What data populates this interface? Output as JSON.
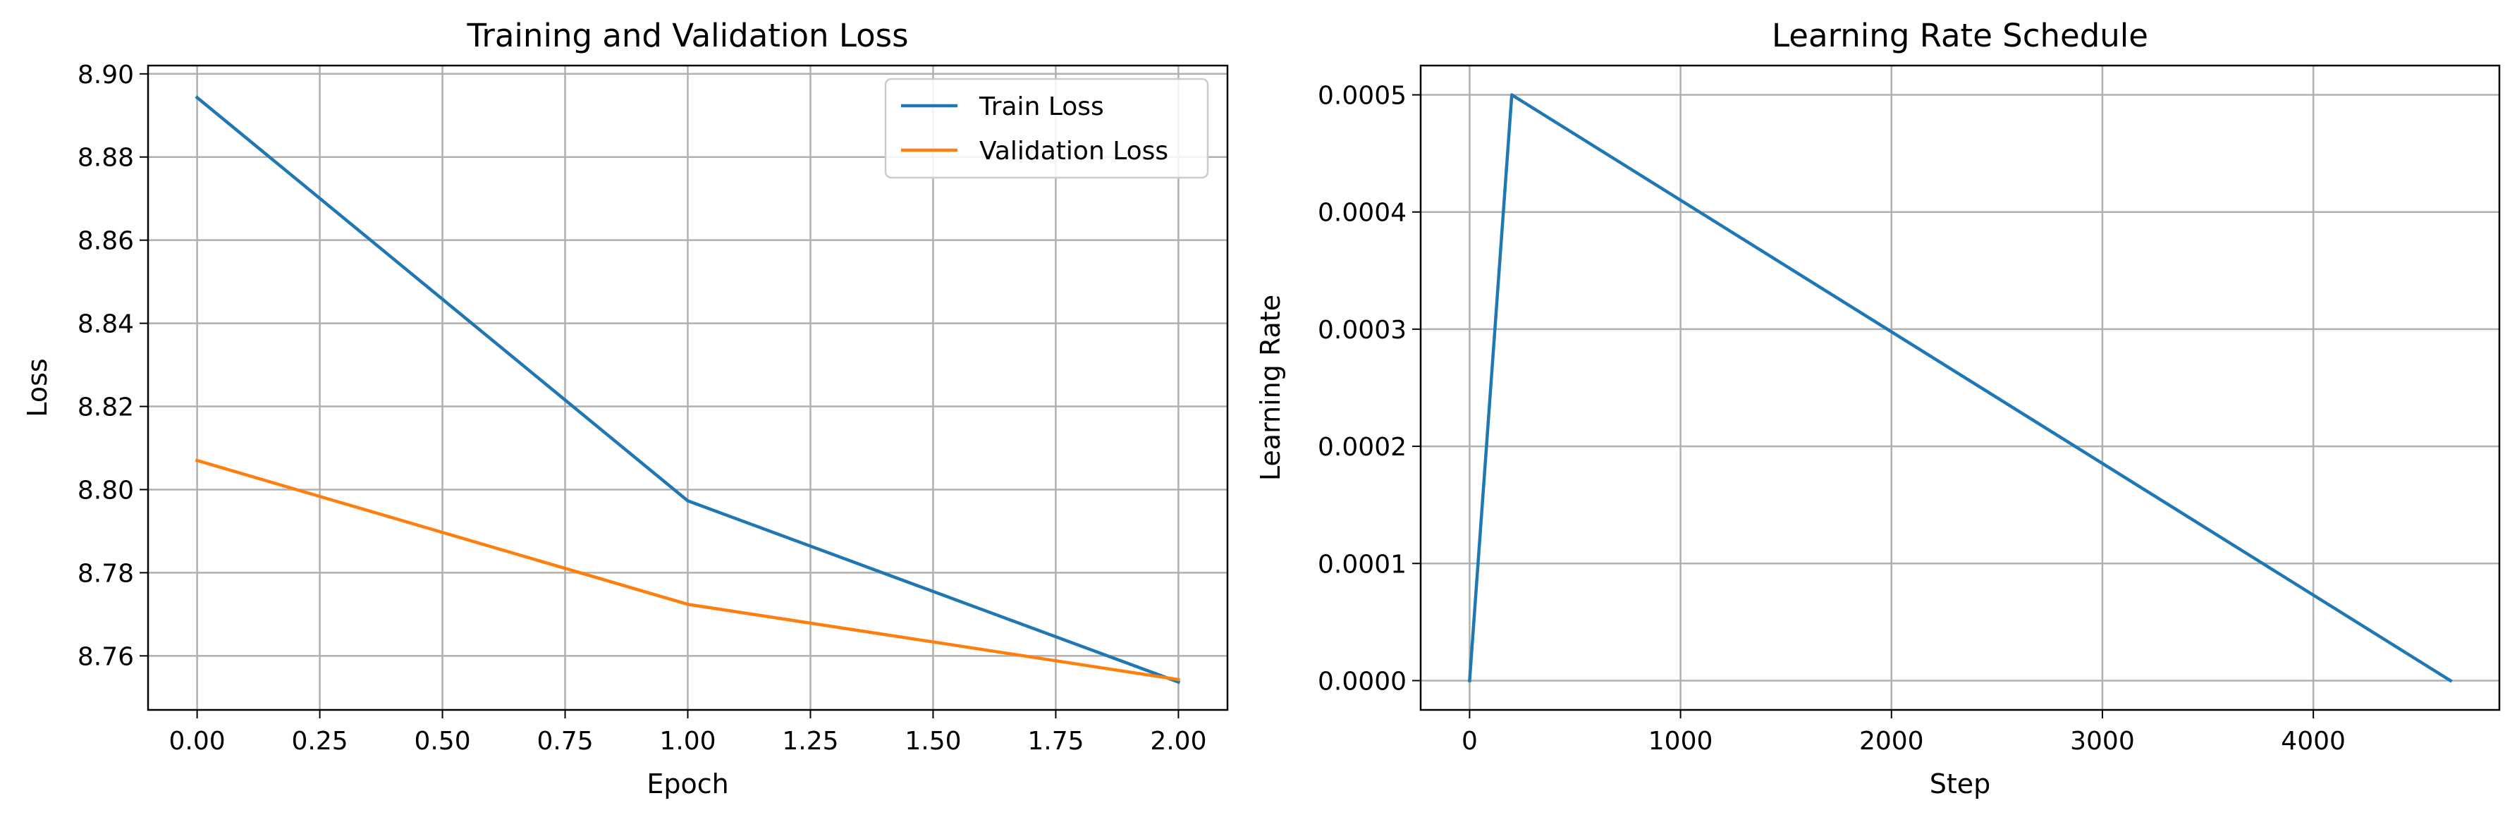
{
  "chart_data": [
    {
      "type": "line",
      "title": "Training and Validation Loss",
      "xlabel": "Epoch",
      "ylabel": "Loss",
      "xlim": [
        -0.1,
        2.1
      ],
      "ylim": [
        8.747,
        8.902
      ],
      "xticks": [
        0.0,
        0.25,
        0.5,
        0.75,
        1.0,
        1.25,
        1.5,
        1.75,
        2.0
      ],
      "xtick_labels": [
        "0.00",
        "0.25",
        "0.50",
        "0.75",
        "1.00",
        "1.25",
        "1.50",
        "1.75",
        "2.00"
      ],
      "yticks": [
        8.76,
        8.78,
        8.8,
        8.82,
        8.84,
        8.86,
        8.88,
        8.9
      ],
      "ytick_labels": [
        "8.76",
        "8.78",
        "8.80",
        "8.82",
        "8.84",
        "8.86",
        "8.88",
        "8.90"
      ],
      "grid": true,
      "legend": "upper right",
      "series": [
        {
          "name": "Train Loss",
          "color": "#1f77b4",
          "x": [
            0,
            1,
            2
          ],
          "y": [
            8.8943,
            8.7973,
            8.7537
          ]
        },
        {
          "name": "Validation Loss",
          "color": "#ff7f0e",
          "x": [
            0,
            1,
            2
          ],
          "y": [
            8.807,
            8.7724,
            8.7543
          ]
        }
      ]
    },
    {
      "type": "line",
      "title": "Learning Rate Schedule",
      "xlabel": "Step",
      "ylabel": "Learning Rate",
      "xlim": [
        -232,
        4882
      ],
      "ylim": [
        -2.5e-05,
        0.000525
      ],
      "xticks": [
        0,
        1000,
        2000,
        3000,
        4000
      ],
      "xtick_labels": [
        "0",
        "1000",
        "2000",
        "3000",
        "4000"
      ],
      "yticks": [
        0.0,
        0.0001,
        0.0002,
        0.0003,
        0.0004,
        0.0005
      ],
      "ytick_labels": [
        "0.0000",
        "0.0001",
        "0.0002",
        "0.0003",
        "0.0004",
        "0.0005"
      ],
      "grid": true,
      "series": [
        {
          "color": "#1f77b4",
          "x": [
            0,
            200,
            4650
          ],
          "y": [
            0.0,
            0.0005,
            0.0
          ]
        }
      ]
    }
  ]
}
